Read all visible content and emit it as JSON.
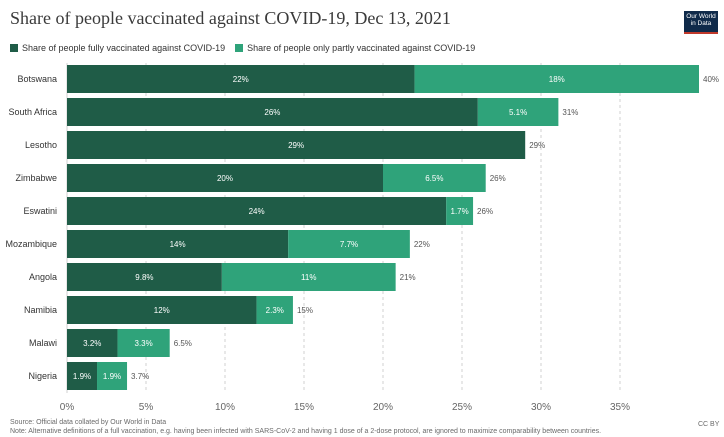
{
  "header": {
    "title": "Share of people vaccinated against COVID-19, Dec 13, 2021",
    "logo_line1": "Our World",
    "logo_line2": "in Data"
  },
  "colors": {
    "full": "#1f5c47",
    "partial": "#2fa37a",
    "grid": "#d0d0d0",
    "axis_text": "#666666"
  },
  "chart_data": {
    "type": "bar",
    "orientation": "horizontal",
    "stacked": true,
    "title": "Share of people vaccinated against COVID-19, Dec 13, 2021",
    "categories": [
      "Botswana",
      "South Africa",
      "Lesotho",
      "Zimbabwe",
      "Eswatini",
      "Mozambique",
      "Angola",
      "Namibia",
      "Malawi",
      "Nigeria"
    ],
    "series": [
      {
        "name": "Share of people fully vaccinated against COVID-19",
        "values": [
          22,
          26,
          29,
          20,
          24,
          14,
          9.8,
          12,
          3.2,
          1.9
        ],
        "labels": [
          "22%",
          "26%",
          "29%",
          "20%",
          "24%",
          "14%",
          "9.8%",
          "12%",
          "3.2%",
          "1.9%"
        ]
      },
      {
        "name": "Share of people only partly vaccinated against COVID-19",
        "values": [
          18,
          5.1,
          0,
          6.5,
          1.7,
          7.7,
          11,
          2.3,
          3.3,
          1.9
        ],
        "labels": [
          "18%",
          "5.1%",
          "",
          "6.5%",
          "1.7%",
          "7.7%",
          "11%",
          "2.3%",
          "3.3%",
          "1.9%"
        ]
      }
    ],
    "totals": [
      "40%",
      "31%",
      "29%",
      "26%",
      "26%",
      "22%",
      "21%",
      "15%",
      "6.5%",
      "3.7%"
    ],
    "x_ticks": [
      "0%",
      "5%",
      "10%",
      "15%",
      "20%",
      "25%",
      "30%",
      "35%"
    ],
    "xlim": [
      0,
      40
    ],
    "grid": true,
    "legend": "top-left"
  },
  "footer": {
    "source": "Source: Official data collated by Our World in Data",
    "note": "Note: Alternative definitions of a full vaccination, e.g. having been infected with SARS-CoV-2 and having 1 dose of a 2-dose protocol, are ignored to maximize comparability between countries.",
    "license": "CC BY"
  }
}
